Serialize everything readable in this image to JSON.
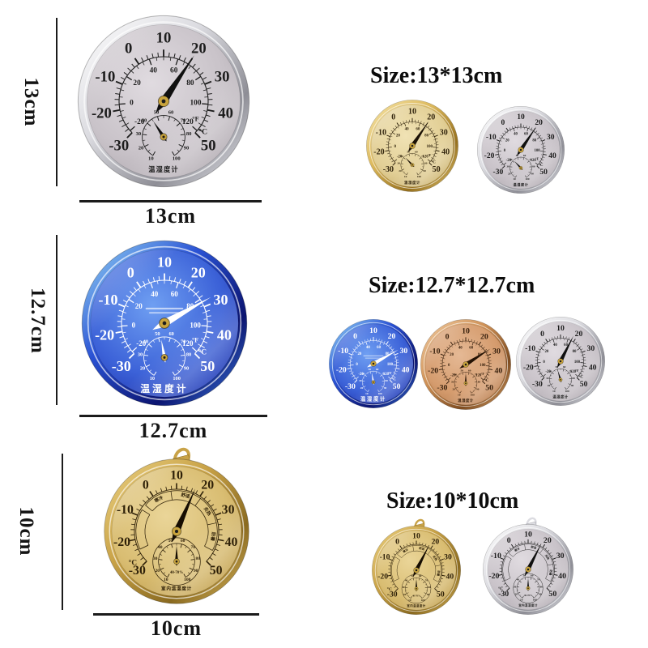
{
  "dial": {
    "celsius_labels": [
      -30,
      -20,
      -10,
      0,
      10,
      20,
      30,
      40,
      50
    ],
    "fahrenheit_labels": [
      -20,
      0,
      20,
      40,
      60,
      80,
      100,
      120
    ],
    "humidity_labels": [
      10,
      20,
      30,
      40,
      50,
      60,
      70,
      80,
      90,
      100
    ],
    "celsius_unit": "°C",
    "fahrenheit_unit": "°F",
    "dial_caption": "温湿度计",
    "indoor_caption": "室内温湿度计",
    "comfort_label": "40-70%",
    "zone_labels": [
      "寒冷",
      "舒适",
      "炎热",
      "防暑"
    ]
  },
  "rows": [
    {
      "height_label": "13cm",
      "width_label": "13cm",
      "size_label": "Size:13*13cm",
      "main": {
        "variant": "silver",
        "temp_c": 20,
        "humidity": 45,
        "indoor": false,
        "hang_ring": false
      },
      "thumbs": [
        {
          "variant": "gold",
          "temp_c": 20,
          "humidity": 42,
          "indoor": false,
          "hang_ring": false
        },
        {
          "variant": "silver",
          "temp_c": 20,
          "humidity": 42,
          "indoor": false,
          "hang_ring": false
        }
      ]
    },
    {
      "height_label": "12.7cm",
      "width_label": "12.7cm",
      "size_label": "Size:12.7*12.7cm",
      "main": {
        "variant": "blue",
        "temp_c": 28,
        "humidity": 52,
        "indoor": false,
        "hang_ring": false
      },
      "thumbs": [
        {
          "variant": "blue",
          "temp_c": 28,
          "humidity": 52,
          "indoor": false,
          "hang_ring": false
        },
        {
          "variant": "copper",
          "temp_c": 27,
          "humidity": 55,
          "indoor": false,
          "hang_ring": false
        },
        {
          "variant": "silver",
          "temp_c": 18,
          "humidity": 50,
          "indoor": false,
          "hang_ring": false
        }
      ]
    },
    {
      "height_label": "10cm",
      "width_label": "10cm",
      "size_label": "Size:10*10cm",
      "main": {
        "variant": "gold_deep",
        "temp_c": 17,
        "humidity": 55,
        "indoor": true,
        "hang_ring": true
      },
      "thumbs": [
        {
          "variant": "gold_deep",
          "temp_c": 18,
          "humidity": 55,
          "indoor": true,
          "hang_ring": true
        },
        {
          "variant": "silver",
          "temp_c": 18,
          "humidity": 55,
          "indoor": true,
          "hang_ring": true
        }
      ]
    }
  ],
  "colors": {
    "background": "#ffffff",
    "annotation_text": "#141414",
    "dimension_line": "#1b1b1b",
    "hub_gold": "#c9a43d",
    "variants": {
      "silver": {
        "ring": [
          "#ffffff",
          "#dcdce1",
          "#8e8e96",
          "#ecedf2"
        ],
        "face": [
          "#e0dbe0",
          "#c9c3c9",
          "#a49da4"
        ],
        "num": "#1d1d1d",
        "pointer": "#101010"
      },
      "gold": {
        "ring": [
          "#f7e7ae",
          "#ddba5e",
          "#96701e",
          "#e8cf7e"
        ],
        "face": [
          "#f0e2b4",
          "#e2cf96",
          "#bfa45e"
        ],
        "num": "#32250e",
        "pointer": "#1c1206"
      },
      "blue": {
        "ring": [
          "#9adcf7",
          "#2a52d4",
          "#0b1470",
          "#3f7de0"
        ],
        "face": [
          "#6f9ff2",
          "#3c62d8",
          "#16249e"
        ],
        "num": "#ffffff",
        "pointer": "#ffffff"
      },
      "copper": {
        "ring": [
          "#f3cfa6",
          "#cf9258",
          "#7e4c20",
          "#e0ab72"
        ],
        "face": [
          "#e5b995",
          "#d59c6e",
          "#a96f42"
        ],
        "num": "#39220f",
        "pointer": "#241204"
      },
      "gold_deep": {
        "ring": [
          "#ecd284",
          "#c9a348",
          "#8a6a20",
          "#dcba60"
        ],
        "face": [
          "#ead598",
          "#d9bd72",
          "#b6923f"
        ],
        "num": "#2e2008",
        "pointer": "#160d02"
      }
    }
  }
}
